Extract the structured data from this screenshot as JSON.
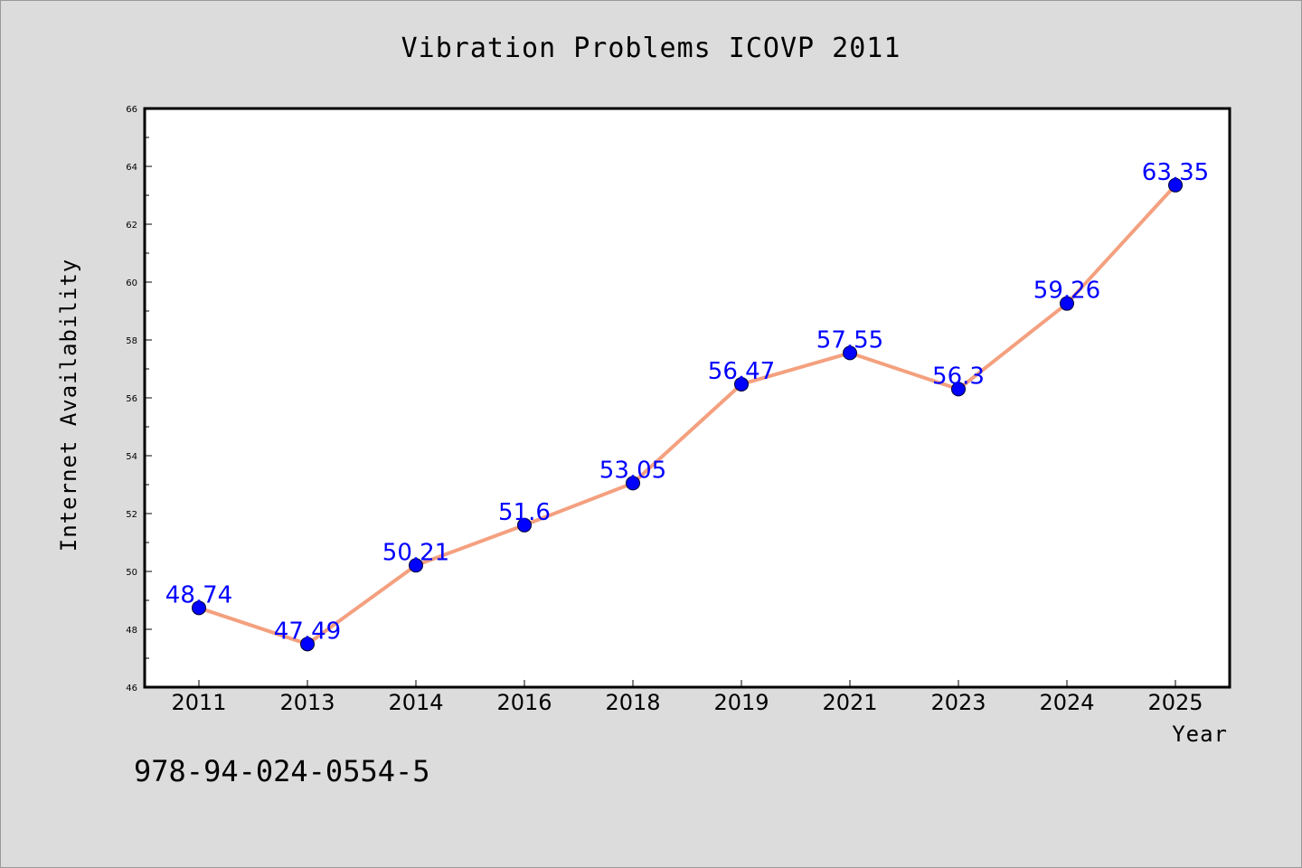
{
  "chart_data": {
    "type": "line",
    "title": "Vibration Problems ICOVP 2011",
    "xlabel": "Year",
    "ylabel": "Internet Availability",
    "categories": [
      "2011",
      "2013",
      "2014",
      "2016",
      "2018",
      "2019",
      "2021",
      "2023",
      "2024",
      "2025"
    ],
    "series": [
      {
        "values": [
          48.74,
          47.49,
          50.21,
          51.6,
          53.05,
          56.47,
          57.55,
          56.3,
          59.26,
          63.35
        ],
        "labels": [
          "48.74",
          "47.49",
          "50.21",
          "51.6",
          "53.05",
          "56.47",
          "57.55",
          "56.3",
          "59.26",
          "63.35"
        ],
        "line_color": "#f4a07f",
        "marker_color": "#0000ff"
      }
    ],
    "ylim": [
      46,
      66
    ],
    "yticks": [
      "46",
      "48",
      "50",
      "52",
      "54",
      "56",
      "58",
      "60",
      "62",
      "64",
      "66"
    ],
    "grid": false,
    "legend": "none"
  },
  "footer_text": "978-94-024-0554-5",
  "colors": {
    "background": "#dcdcdc",
    "plot_background": "#ffffff",
    "line": "#f4a07f",
    "marker": "#0000ff",
    "data_label": "#0000ff"
  }
}
